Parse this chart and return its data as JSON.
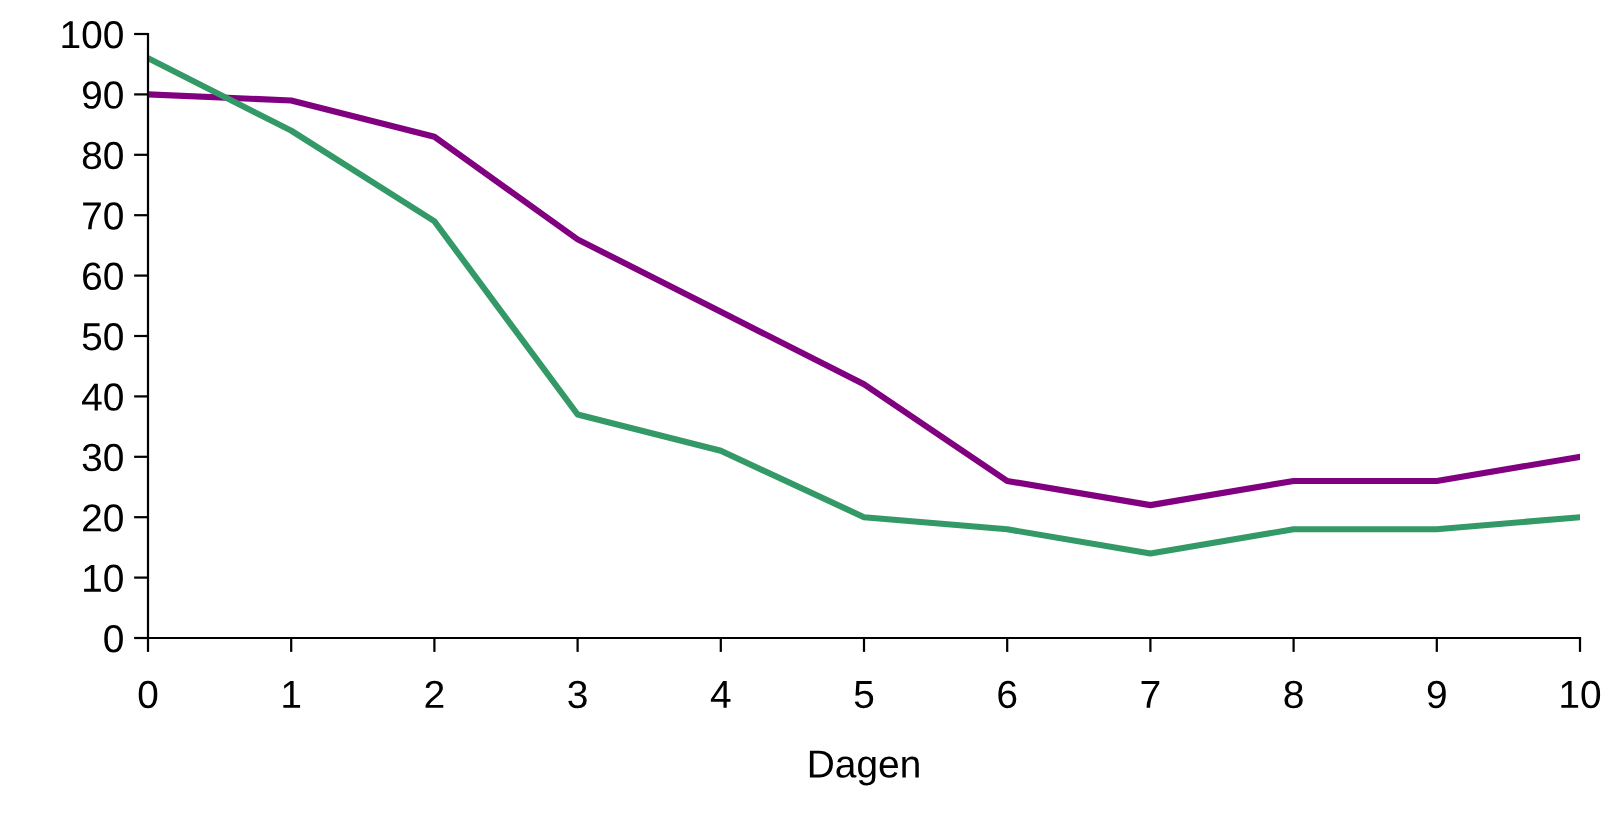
{
  "chart_data": {
    "type": "line",
    "xlabel": "Dagen",
    "x": [
      0,
      1,
      2,
      3,
      4,
      5,
      6,
      7,
      8,
      9,
      10
    ],
    "series": [
      {
        "color": "#800080",
        "values": [
          90,
          89,
          83,
          66,
          54,
          42,
          26,
          22,
          26,
          26,
          30
        ]
      },
      {
        "color": "#339966",
        "values": [
          96,
          84,
          69,
          37,
          31,
          20,
          18,
          14,
          18,
          18,
          20
        ]
      }
    ],
    "xlim": [
      0,
      10
    ],
    "xticks": [
      0,
      1,
      2,
      3,
      4,
      5,
      6,
      7,
      8,
      9,
      10
    ],
    "ylim": [
      0,
      100
    ],
    "yticks": [
      0,
      10,
      20,
      30,
      40,
      50,
      60,
      70,
      80,
      90,
      100
    ],
    "grid": false
  }
}
